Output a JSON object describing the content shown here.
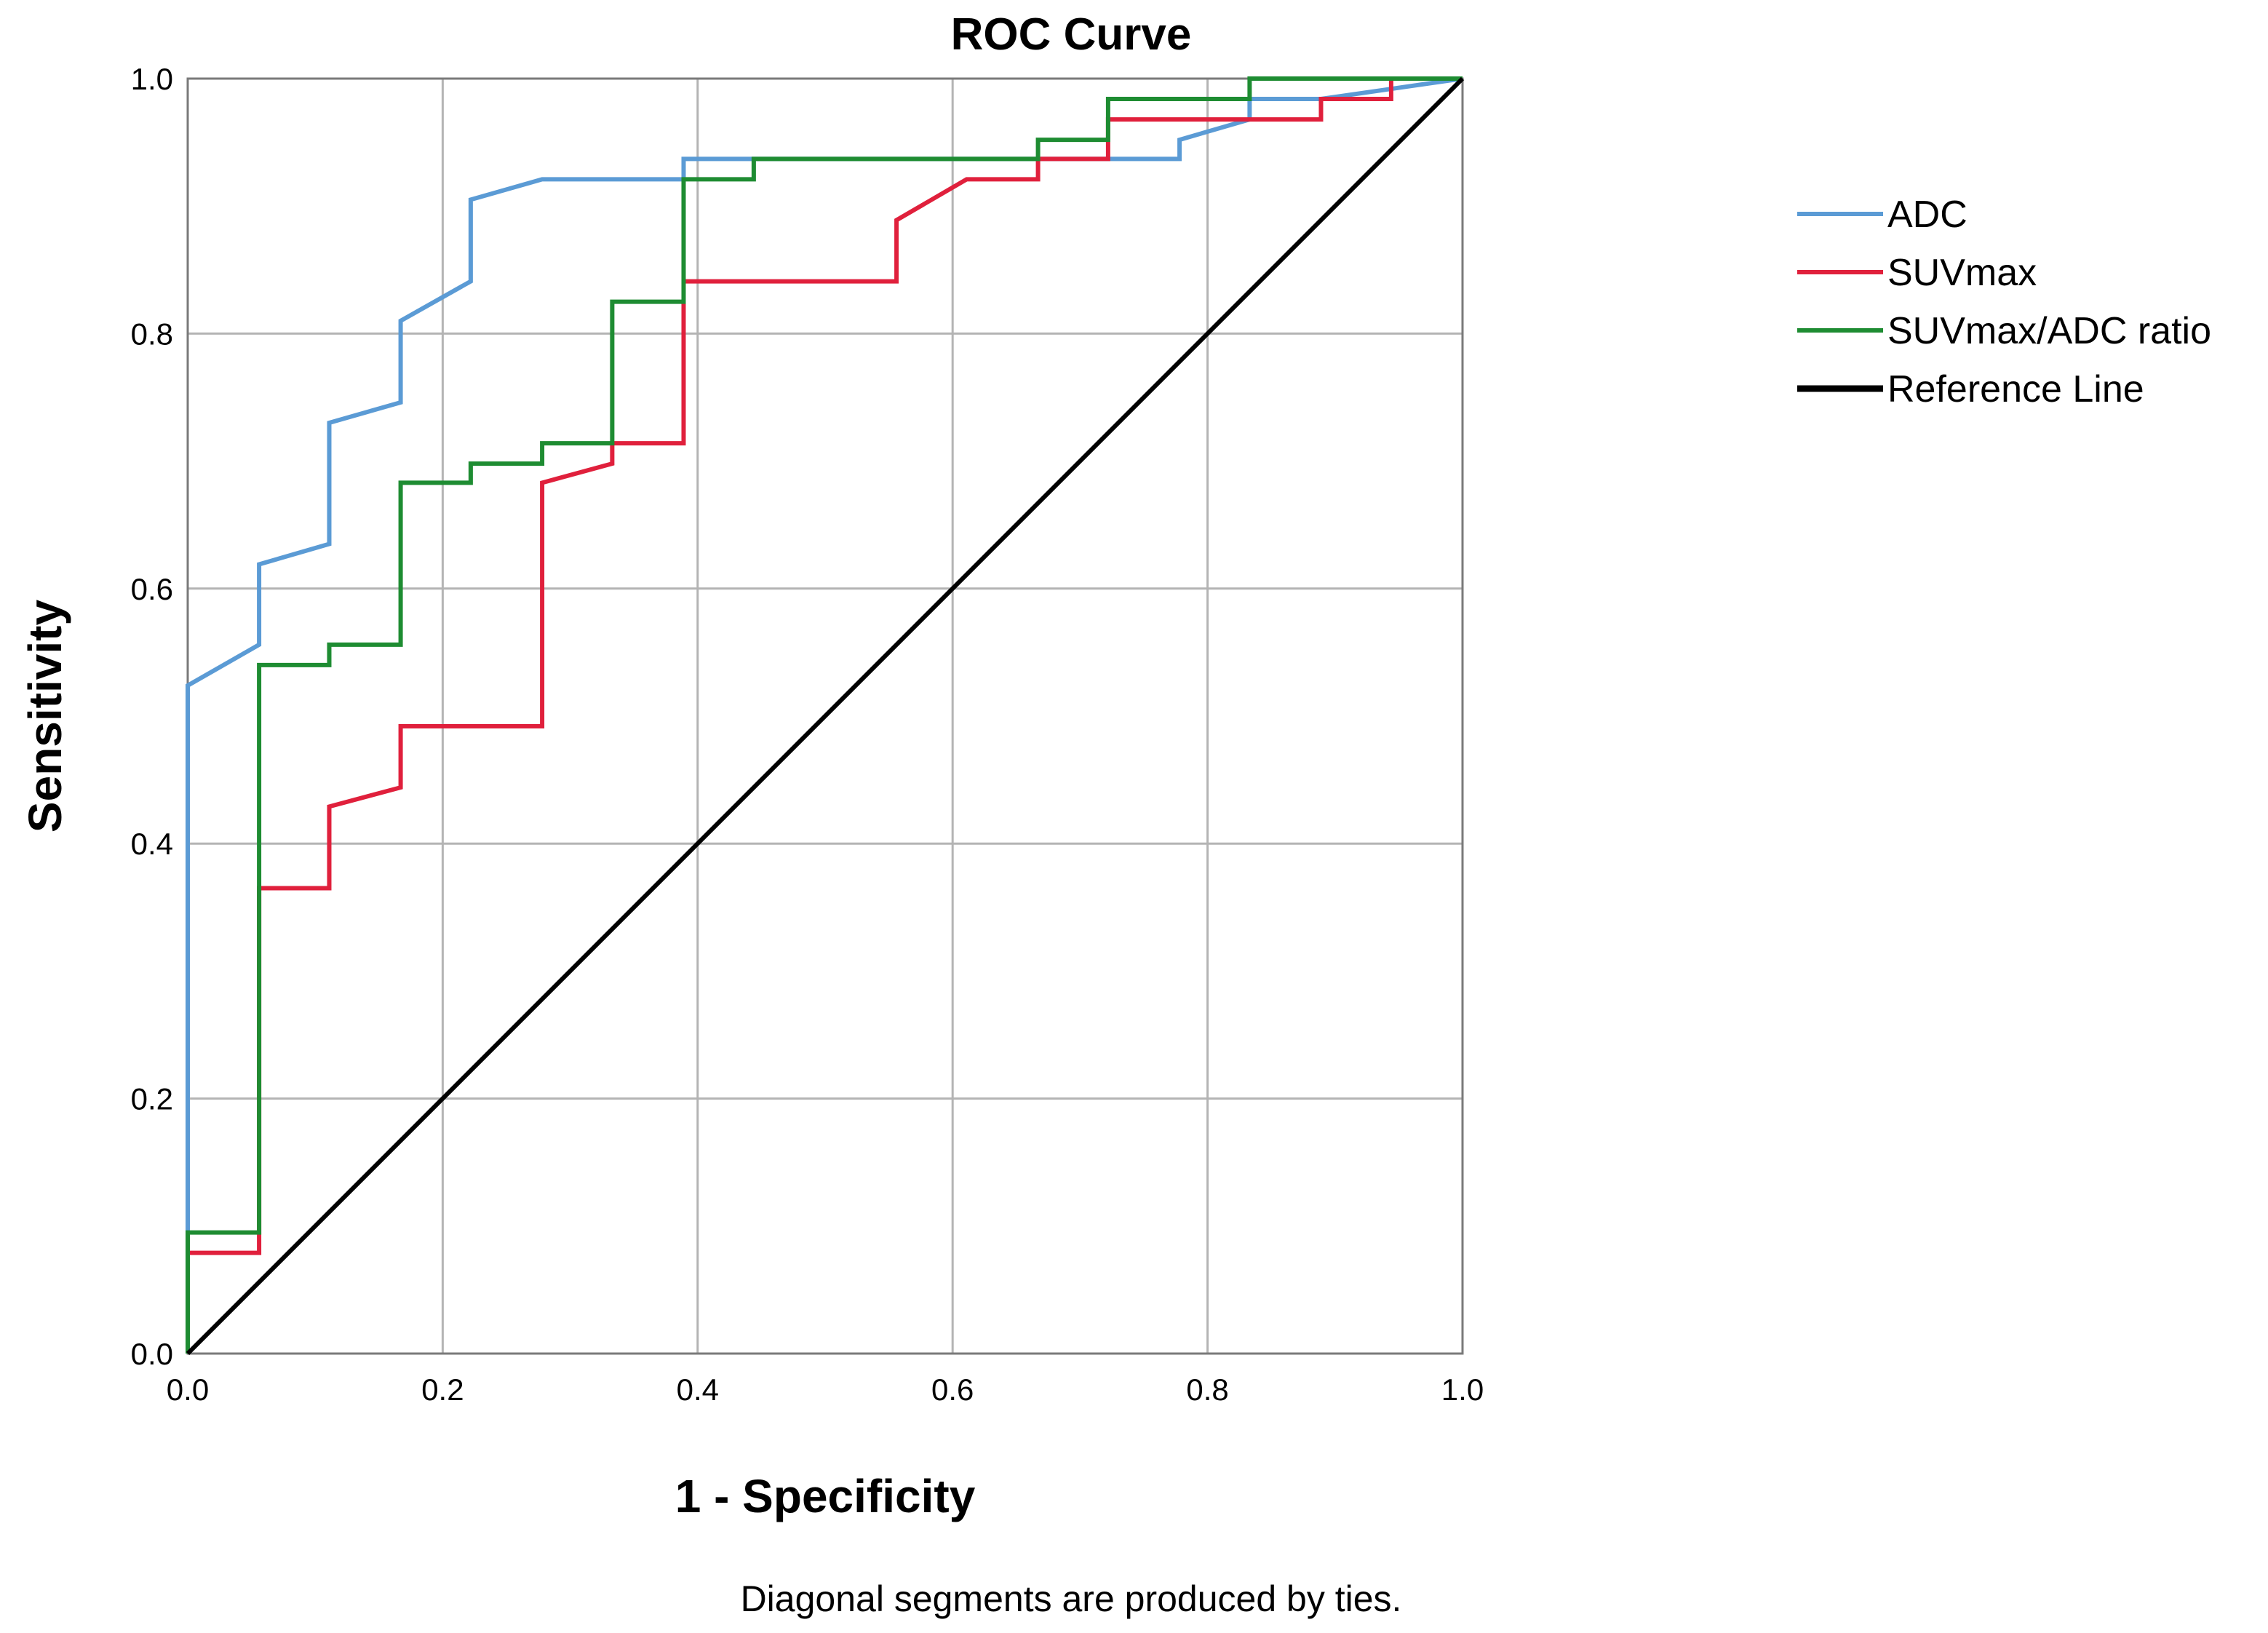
{
  "chart_data": {
    "type": "line",
    "title": "ROC Curve",
    "xlabel": "1 - Specificity",
    "ylabel": "Sensitivity",
    "xlim": [
      0,
      1
    ],
    "ylim": [
      0,
      1
    ],
    "xticks": [
      "0.0",
      "0.2",
      "0.4",
      "0.6",
      "0.8",
      "1.0"
    ],
    "yticks": [
      "0.0",
      "0.2",
      "0.4",
      "0.6",
      "0.8",
      "1.0"
    ],
    "grid": true,
    "legend_position": "right",
    "footnote": "Diagonal segments are produced by ties.",
    "series": [
      {
        "name": "ADC",
        "color": "#5b9bd5",
        "x": [
          0,
          0,
          0.056,
          0.056,
          0.111,
          0.111,
          0.167,
          0.167,
          0.222,
          0.222,
          0.278,
          0.389,
          0.389,
          0.722,
          0.778,
          0.778,
          0.833,
          0.833,
          0.889,
          1.0
        ],
        "y": [
          0,
          0.524,
          0.556,
          0.619,
          0.635,
          0.73,
          0.746,
          0.81,
          0.841,
          0.905,
          0.921,
          0.921,
          0.937,
          0.937,
          0.937,
          0.952,
          0.968,
          0.984,
          0.984,
          1.0
        ]
      },
      {
        "name": "SUVmax",
        "color": "#e0203c",
        "x": [
          0,
          0,
          0.056,
          0.056,
          0.111,
          0.111,
          0.167,
          0.167,
          0.278,
          0.278,
          0.333,
          0.333,
          0.389,
          0.389,
          0.556,
          0.556,
          0.611,
          0.667,
          0.667,
          0.722,
          0.722,
          0.889,
          0.889,
          0.944,
          0.944,
          1.0
        ],
        "y": [
          0,
          0.079,
          0.079,
          0.365,
          0.365,
          0.429,
          0.444,
          0.492,
          0.492,
          0.683,
          0.698,
          0.714,
          0.714,
          0.841,
          0.841,
          0.889,
          0.921,
          0.921,
          0.937,
          0.937,
          0.968,
          0.968,
          0.984,
          0.984,
          1.0,
          1.0
        ]
      },
      {
        "name": "SUVmax/ADC ratio",
        "color": "#1e8c32",
        "x": [
          0,
          0,
          0.056,
          0.056,
          0.111,
          0.111,
          0.167,
          0.167,
          0.222,
          0.222,
          0.278,
          0.278,
          0.333,
          0.333,
          0.389,
          0.389,
          0.444,
          0.444,
          0.667,
          0.667,
          0.722,
          0.722,
          0.833,
          0.833,
          1.0
        ],
        "y": [
          0,
          0.095,
          0.095,
          0.54,
          0.54,
          0.556,
          0.556,
          0.683,
          0.683,
          0.698,
          0.698,
          0.714,
          0.714,
          0.825,
          0.825,
          0.921,
          0.921,
          0.937,
          0.937,
          0.952,
          0.952,
          0.984,
          0.984,
          1.0,
          1.0
        ]
      },
      {
        "name": "Reference Line",
        "color": "#000000",
        "x": [
          0,
          1
        ],
        "y": [
          0,
          1
        ]
      }
    ]
  }
}
